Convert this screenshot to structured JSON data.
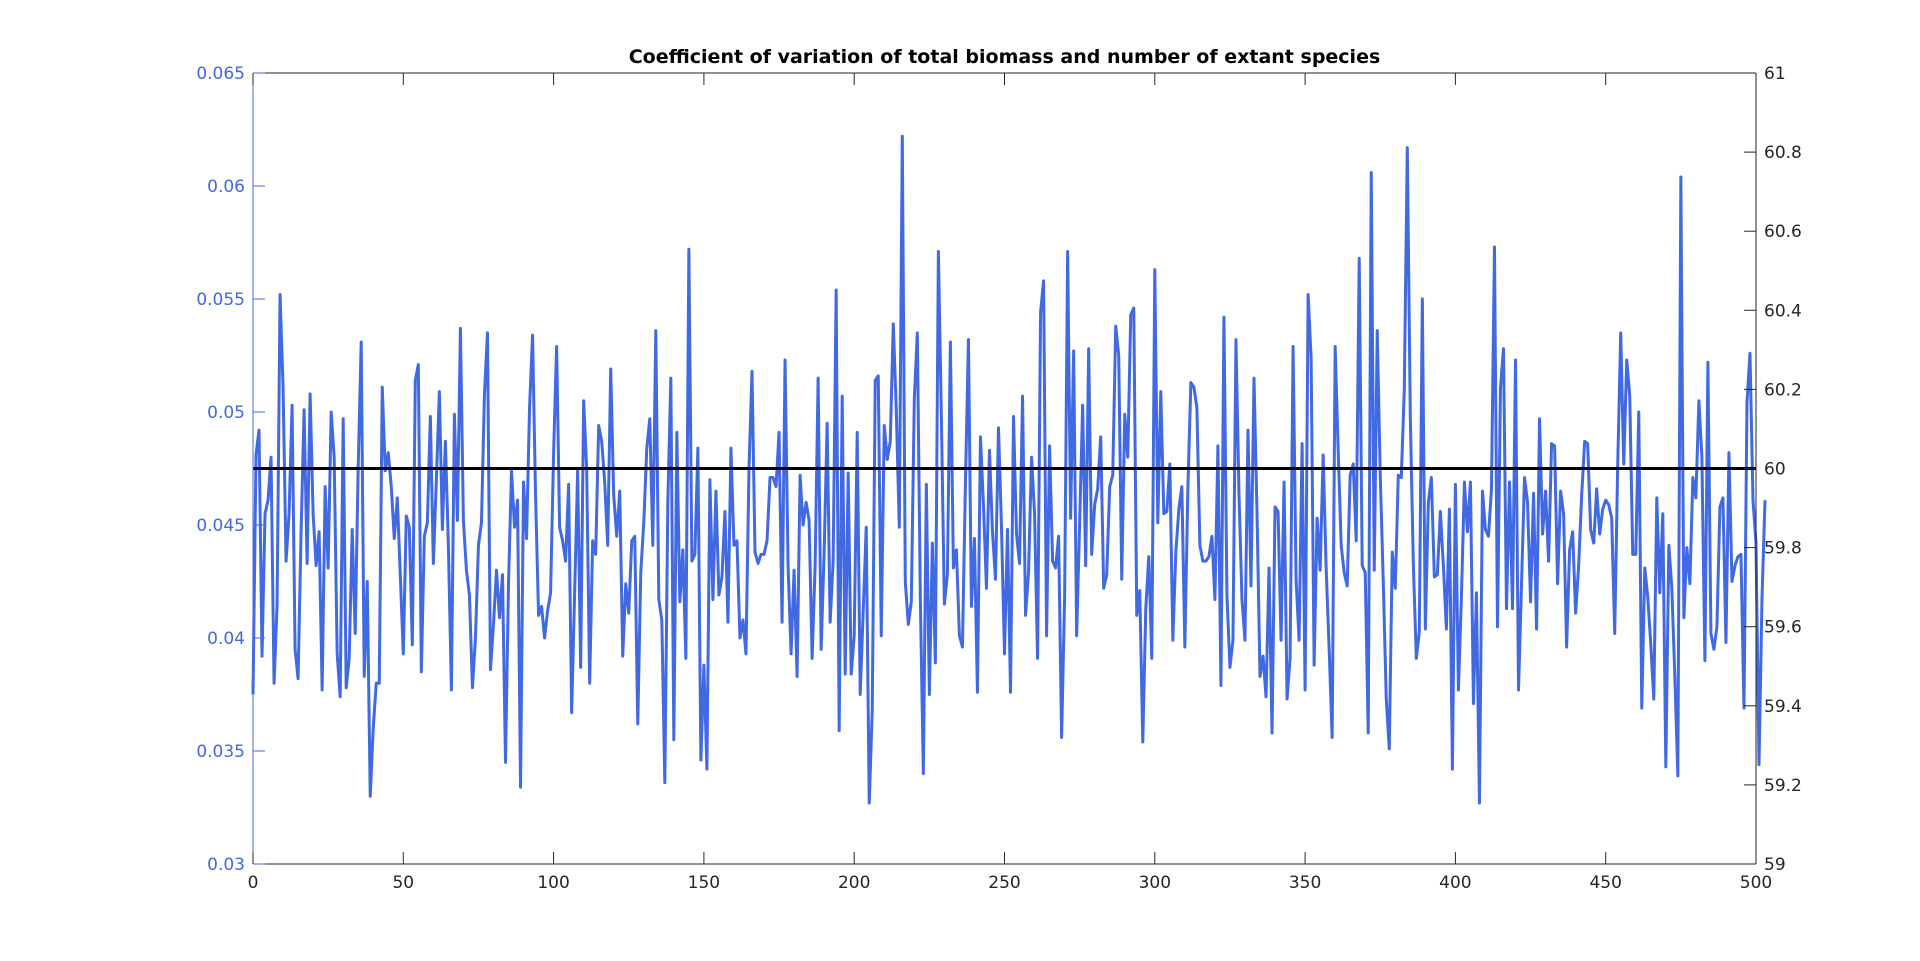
{
  "chart_data": {
    "type": "line",
    "title": "Coefficient of variation of total biomass and number of extant species",
    "xlabel": "",
    "ylabel_left": "",
    "ylabel_right": "",
    "xlim": [
      0,
      500
    ],
    "ylim_left": [
      0.03,
      0.065
    ],
    "ylim_right": [
      59,
      61
    ],
    "grid": false,
    "colors": {
      "left_axis": "#4169E1",
      "series": "#4169E1",
      "right_axis": "#000000",
      "ref_line": "#000000"
    },
    "x_ticks": [
      "0",
      "50",
      "100",
      "150",
      "200",
      "250",
      "300",
      "350",
      "400",
      "450",
      "500"
    ],
    "x_tick_values": [
      0,
      50,
      100,
      150,
      200,
      250,
      300,
      350,
      400,
      450,
      500
    ],
    "y_left_ticks": [
      "0.03",
      "0.035",
      "0.04",
      "0.045",
      "0.05",
      "0.055",
      "0.06",
      "0.065"
    ],
    "y_left_tick_values": [
      0.03,
      0.035,
      0.04,
      0.045,
      0.05,
      0.055,
      0.06,
      0.065
    ],
    "y_right_ticks": [
      "59",
      "59.2",
      "59.4",
      "59.6",
      "59.8",
      "60",
      "60.2",
      "60.4",
      "60.6",
      "60.8",
      "61"
    ],
    "y_right_tick_values": [
      59,
      59.2,
      59.4,
      59.6,
      59.8,
      60,
      60.2,
      60.4,
      60.6,
      60.8,
      61
    ],
    "series": [
      {
        "axis": "left",
        "x_start": 0,
        "x_step": 1,
        "values": [
          0.0375,
          0.0481,
          0.0492,
          0.0392,
          0.0455,
          0.0461,
          0.048,
          0.038,
          0.0414,
          0.0552,
          0.0511,
          0.0434,
          0.0455,
          0.0503,
          0.0395,
          0.0382,
          0.0447,
          0.0501,
          0.0433,
          0.0508,
          0.0455,
          0.0432,
          0.0447,
          0.0377,
          0.0467,
          0.0431,
          0.05,
          0.048,
          0.0393,
          0.0374,
          0.0497,
          0.0378,
          0.0391,
          0.0448,
          0.0402,
          0.0476,
          0.0531,
          0.0383,
          0.0425,
          0.033,
          0.036,
          0.038,
          0.038,
          0.0511,
          0.0474,
          0.0482,
          0.0467,
          0.0444,
          0.0462,
          0.0428,
          0.0393,
          0.0454,
          0.0449,
          0.0397,
          0.0514,
          0.0521,
          0.0385,
          0.0445,
          0.0451,
          0.0498,
          0.0433,
          0.047,
          0.0509,
          0.0448,
          0.0487,
          0.0441,
          0.0377,
          0.0499,
          0.0452,
          0.0537,
          0.0452,
          0.043,
          0.0419,
          0.0378,
          0.04,
          0.0441,
          0.0451,
          0.0508,
          0.0535,
          0.0386,
          0.0406,
          0.043,
          0.0409,
          0.0428,
          0.0345,
          0.0424,
          0.0474,
          0.0449,
          0.0461,
          0.0334,
          0.0469,
          0.0444,
          0.0502,
          0.0534,
          0.0463,
          0.041,
          0.0414,
          0.04,
          0.0412,
          0.042,
          0.0482,
          0.0529,
          0.0449,
          0.0443,
          0.0434,
          0.0468,
          0.0367,
          0.042,
          0.0474,
          0.0387,
          0.0505,
          0.0475,
          0.038,
          0.0443,
          0.0437,
          0.0494,
          0.0487,
          0.0469,
          0.0441,
          0.0519,
          0.0463,
          0.0445,
          0.0465,
          0.0392,
          0.0424,
          0.0411,
          0.0443,
          0.0445,
          0.0362,
          0.0429,
          0.0451,
          0.0484,
          0.0497,
          0.0441,
          0.0536,
          0.0417,
          0.0408,
          0.0336,
          0.046,
          0.0515,
          0.0355,
          0.0491,
          0.0416,
          0.0439,
          0.0391,
          0.0572,
          0.0434,
          0.0437,
          0.0484,
          0.0346,
          0.0388,
          0.0342,
          0.047,
          0.0417,
          0.0465,
          0.0419,
          0.0427,
          0.0456,
          0.0407,
          0.0484,
          0.0441,
          0.0443,
          0.04,
          0.0408,
          0.0393,
          0.0475,
          0.0518,
          0.0438,
          0.0433,
          0.0437,
          0.0437,
          0.0443,
          0.0471,
          0.0471,
          0.0467,
          0.0491,
          0.0407,
          0.0523,
          0.0432,
          0.0393,
          0.043,
          0.0383,
          0.0472,
          0.045,
          0.046,
          0.0452,
          0.0391,
          0.0432,
          0.0515,
          0.0395,
          0.0438,
          0.0495,
          0.0407,
          0.0434,
          0.0554,
          0.0359,
          0.0507,
          0.0384,
          0.0473,
          0.0384,
          0.0401,
          0.0491,
          0.0375,
          0.0412,
          0.0449,
          0.0327,
          0.0368,
          0.0514,
          0.0516,
          0.0401,
          0.0494,
          0.0479,
          0.0487,
          0.0539,
          0.0501,
          0.0449,
          0.0622,
          0.0425,
          0.0406,
          0.0416,
          0.0506,
          0.0535,
          0.0418,
          0.034,
          0.0468,
          0.0375,
          0.0442,
          0.0389,
          0.0571,
          0.0498,
          0.0415,
          0.0428,
          0.0531,
          0.0431,
          0.0439,
          0.0401,
          0.0396,
          0.0468,
          0.0532,
          0.0414,
          0.0444,
          0.0376,
          0.0489,
          0.0459,
          0.0422,
          0.0483,
          0.0447,
          0.0426,
          0.0493,
          0.0449,
          0.0393,
          0.0448,
          0.0376,
          0.0498,
          0.0446,
          0.0433,
          0.0507,
          0.041,
          0.0429,
          0.048,
          0.0455,
          0.0391,
          0.0544,
          0.0558,
          0.0401,
          0.0485,
          0.0434,
          0.0431,
          0.0445,
          0.0356,
          0.0418,
          0.0571,
          0.0453,
          0.0527,
          0.0401,
          0.0451,
          0.0503,
          0.0432,
          0.0528,
          0.0437,
          0.0459,
          0.0466,
          0.0489,
          0.0422,
          0.0428,
          0.0467,
          0.0472,
          0.0538,
          0.0525,
          0.0426,
          0.0499,
          0.048,
          0.0543,
          0.0546,
          0.041,
          0.0421,
          0.0354,
          0.0413,
          0.0436,
          0.0391,
          0.0563,
          0.0451,
          0.0509,
          0.0455,
          0.0456,
          0.0477,
          0.0399,
          0.0438,
          0.0457,
          0.0467,
          0.0396,
          0.0466,
          0.0513,
          0.0511,
          0.0502,
          0.0441,
          0.0434,
          0.0434,
          0.0436,
          0.0445,
          0.0417,
          0.0485,
          0.0379,
          0.0542,
          0.0419,
          0.0387,
          0.0399,
          0.0532,
          0.0464,
          0.0417,
          0.0399,
          0.0492,
          0.0423,
          0.0515,
          0.0456,
          0.0383,
          0.0392,
          0.0374,
          0.0431,
          0.0358,
          0.0458,
          0.0456,
          0.0399,
          0.0469,
          0.0373,
          0.0391,
          0.0529,
          0.0426,
          0.0399,
          0.0486,
          0.0377,
          0.0552,
          0.0524,
          0.0388,
          0.0453,
          0.043,
          0.0481,
          0.0431,
          0.0395,
          0.0356,
          0.0529,
          0.0483,
          0.0441,
          0.0429,
          0.0423,
          0.0472,
          0.0477,
          0.0443,
          0.0568,
          0.0432,
          0.0429,
          0.0358,
          0.0606,
          0.043,
          0.0536,
          0.0472,
          0.0425,
          0.0373,
          0.0351,
          0.0438,
          0.0422,
          0.0472,
          0.0471,
          0.051,
          0.0617,
          0.0498,
          0.0433,
          0.0391,
          0.0403,
          0.055,
          0.0404,
          0.046,
          0.0471,
          0.0427,
          0.0428,
          0.0456,
          0.0432,
          0.0404,
          0.0457,
          0.0342,
          0.0468,
          0.0377,
          0.0418,
          0.0469,
          0.0447,
          0.0469,
          0.0371,
          0.042,
          0.0327,
          0.0465,
          0.0448,
          0.0445,
          0.0466,
          0.0573,
          0.0405,
          0.0511,
          0.0528,
          0.0413,
          0.0469,
          0.0413,
          0.0523,
          0.0377,
          0.0424,
          0.0471,
          0.046,
          0.0416,
          0.0464,
          0.0404,
          0.0497,
          0.0446,
          0.0465,
          0.0434,
          0.0486,
          0.0485,
          0.0424,
          0.0465,
          0.0455,
          0.0396,
          0.0439,
          0.0447,
          0.0411,
          0.0432,
          0.0463,
          0.0487,
          0.0486,
          0.0448,
          0.0442,
          0.0466,
          0.0446,
          0.0457,
          0.0461,
          0.0459,
          0.0453,
          0.0402,
          0.0477,
          0.0535,
          0.0477,
          0.0523,
          0.0507,
          0.0437,
          0.0437,
          0.05,
          0.0369,
          0.0431,
          0.0418,
          0.0397,
          0.0373,
          0.0462,
          0.042,
          0.0455,
          0.0343,
          0.0441,
          0.0422,
          0.0383,
          0.0339,
          0.0604,
          0.0409,
          0.044,
          0.0424,
          0.0471,
          0.0462,
          0.0505,
          0.048,
          0.039,
          0.0522,
          0.0402,
          0.0395,
          0.0405,
          0.0458,
          0.0462,
          0.0398,
          0.0482,
          0.0425,
          0.0432,
          0.0436,
          0.0437,
          0.0369,
          0.0504,
          0.0526,
          0.0461,
          0.0442,
          0.0344,
          0.0418,
          0.0461
        ]
      },
      {
        "axis": "right",
        "x": [
          0,
          500
        ],
        "values": [
          60,
          60
        ]
      }
    ]
  }
}
